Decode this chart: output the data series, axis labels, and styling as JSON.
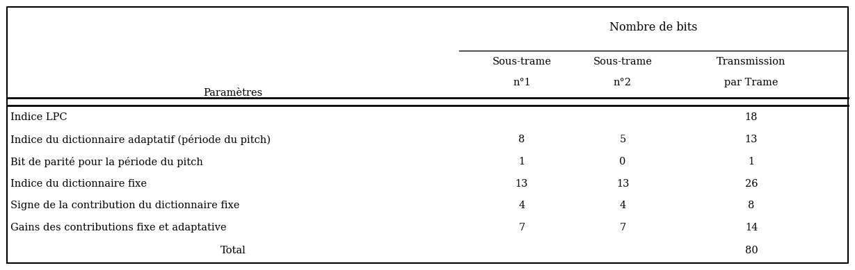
{
  "title_top": "Nombre de bits",
  "row_header": "Paramètres",
  "col_h1": [
    "",
    "Sous-trame",
    "Sous-trame",
    "Transmission"
  ],
  "col_h2": [
    "",
    "n°1",
    "n°2",
    "par Trame"
  ],
  "col_h_params": "Paramètres",
  "rows": [
    [
      "Indice LPC",
      "",
      "",
      "18"
    ],
    [
      "Indice du dictionnaire adaptatif (période du pitch)",
      "8",
      "5",
      "13"
    ],
    [
      "Bit de parité pour la période du pitch",
      "1",
      "0",
      "1"
    ],
    [
      "Indice du dictionnaire fixe",
      "13",
      "13",
      "26"
    ],
    [
      "Signe de la contribution du dictionnaire fixe",
      "4",
      "4",
      "8"
    ],
    [
      "Gains des contributions fixe et adaptative",
      "7",
      "7",
      "14"
    ]
  ],
  "total_label": "Total",
  "total_value": "80",
  "bg_color": "#ffffff",
  "text_color": "#000000",
  "font_size": 10.5
}
